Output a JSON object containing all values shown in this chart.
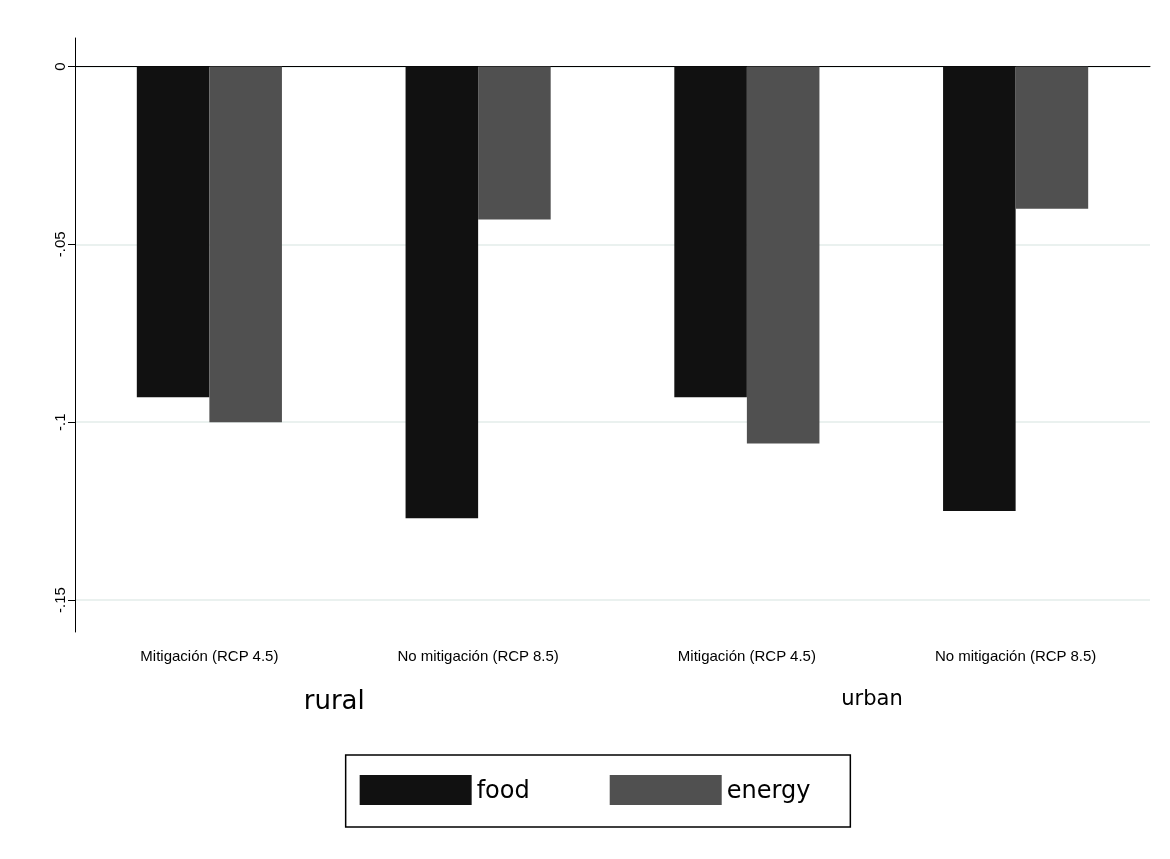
{
  "chart_data": {
    "type": "bar",
    "categories": [
      "Mitigación (RCP 4.5)",
      "No mitigación (RCP 8.5)",
      "Mitigación (RCP 4.5)",
      "No mitigación (RCP 8.5)"
    ],
    "series": [
      {
        "name": "food",
        "color": "#111111",
        "values": [
          -0.093,
          -0.127,
          -0.093,
          -0.125
        ]
      },
      {
        "name": "energy",
        "color": "#505050",
        "values": [
          -0.1,
          -0.043,
          -0.106,
          -0.04
        ]
      }
    ],
    "ylim": [
      -0.159,
      0.008
    ],
    "yticks": [
      {
        "value": -0.15,
        "label": "-.15"
      },
      {
        "value": -0.1,
        "label": "-.1"
      },
      {
        "value": -0.05,
        "label": "-.05"
      },
      0
    ],
    "annotations": [
      "rural",
      "urban"
    ],
    "grid": "y",
    "legend": "bottom"
  }
}
